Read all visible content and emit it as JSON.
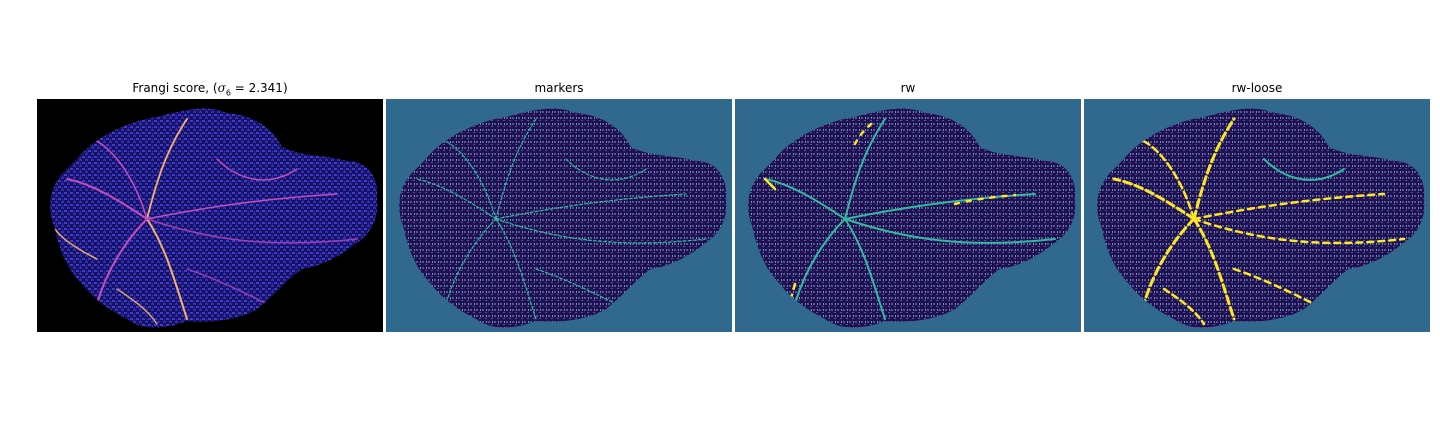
{
  "panels": [
    {
      "title": "Frangi score, (",
      "title_math": "σ",
      "title_sub": "6",
      "title_tail": " = 2.341)"
    },
    {
      "title": "markers"
    },
    {
      "title": "rw"
    },
    {
      "title": "rw-loose"
    }
  ],
  "colors": {
    "background_dark": "#000000",
    "background_teal": "#31688e",
    "tissue_dark_purple": "#2a0a55",
    "tissue_blue": "#2b2fb8",
    "vessel_teal": "#35b7a0",
    "vessel_yellow": "#fde725",
    "vessel_magenta": "#c24dbd",
    "vessel_orange": "#f5b06a"
  }
}
